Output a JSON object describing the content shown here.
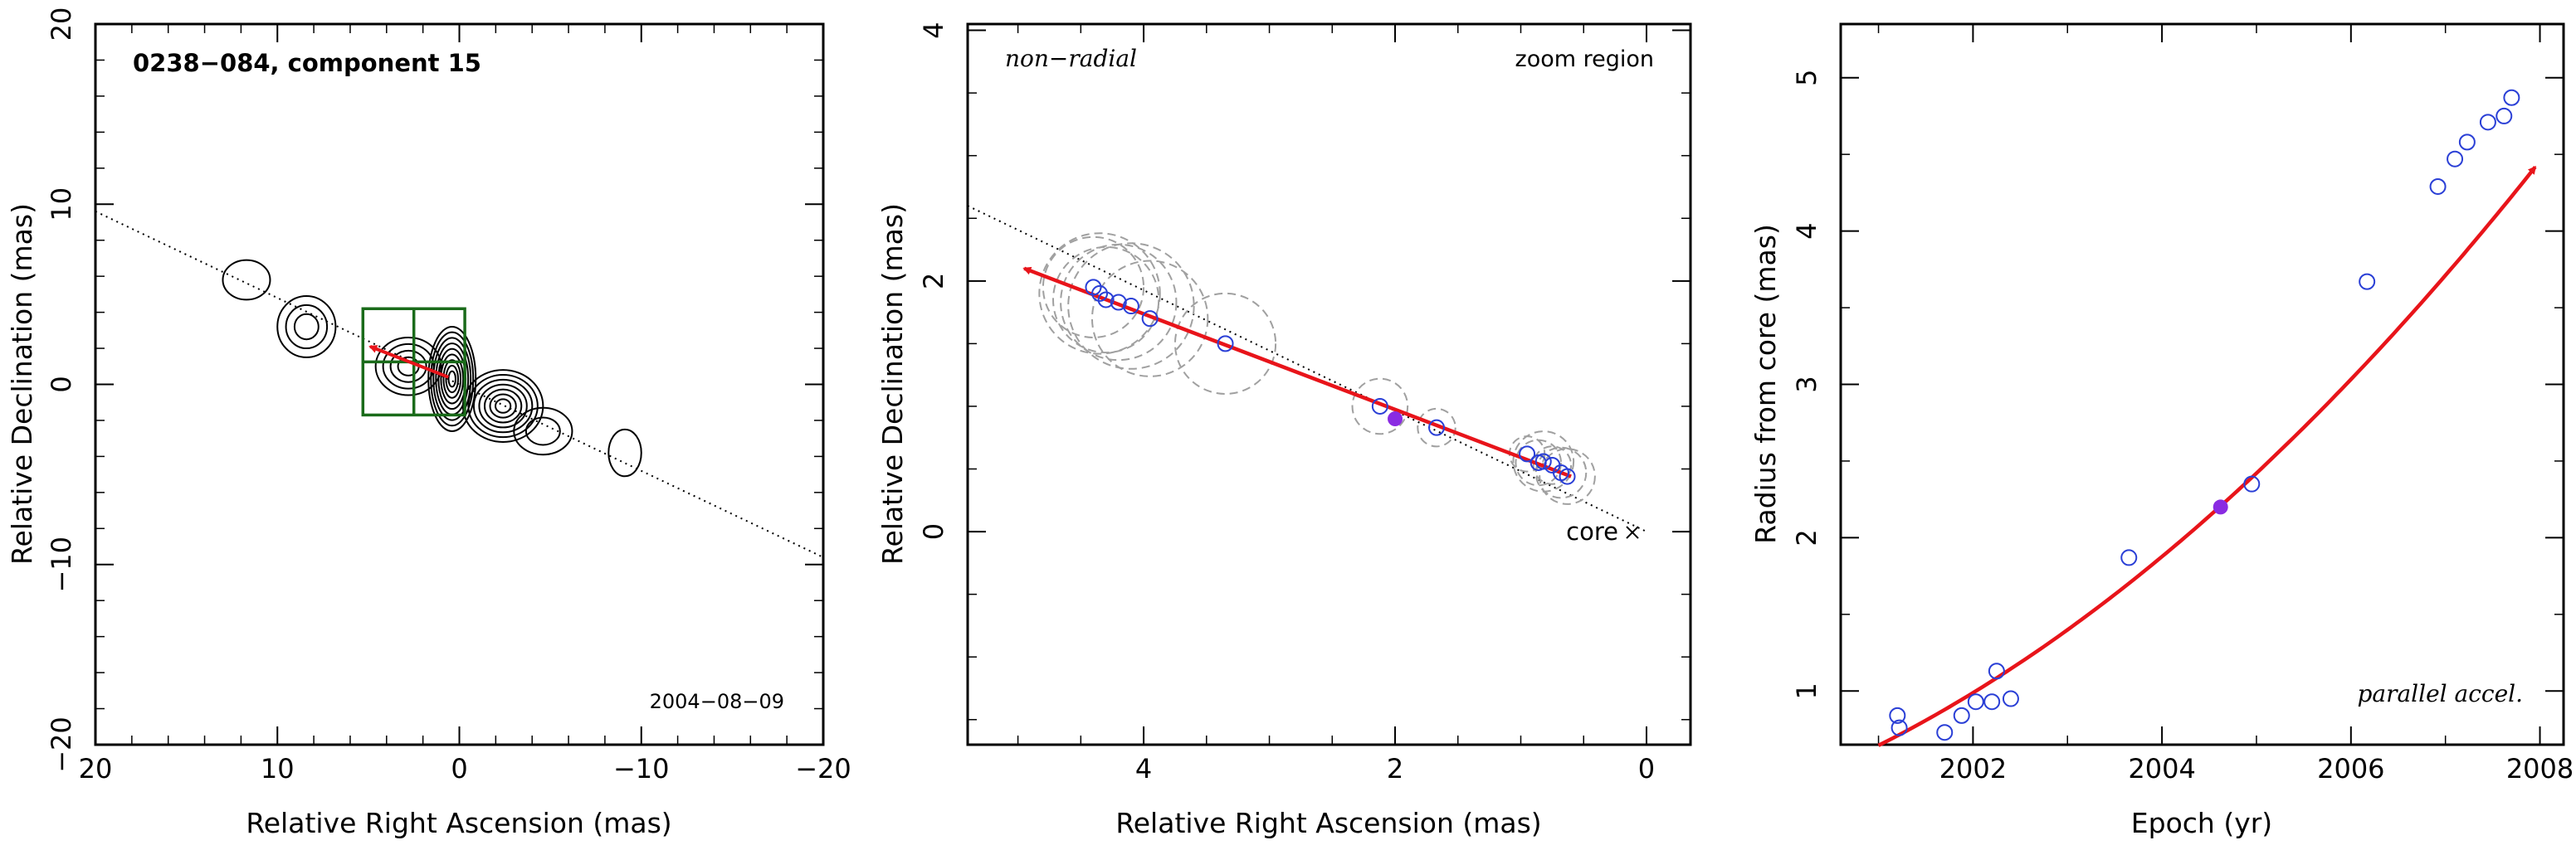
{
  "chart_data": [
    {
      "type": "contour",
      "title": "0238−084, component 15",
      "epoch_label": "2004−08−09",
      "xlabel": "Relative Right Ascension (mas)",
      "ylabel": "Relative Declination (mas)",
      "xlim": [
        20,
        -20
      ],
      "ylim": [
        -20,
        20
      ],
      "xticks": [
        20,
        10,
        0,
        -10,
        -20
      ],
      "yticks": [
        -20,
        -10,
        0,
        10,
        20
      ],
      "xtick_labels": [
        "20",
        "10",
        "0",
        "−10",
        "−20"
      ],
      "ytick_labels": [
        "−20",
        "−10",
        "0",
        "10",
        "20"
      ],
      "jet_axis_line": [
        [
          20,
          9.6
        ],
        [
          -20,
          -9.6
        ]
      ],
      "zoom_box": {
        "x": [
          5.3,
          -0.3
        ],
        "y": [
          -1.7,
          4.2
        ],
        "color": "#1a6b1a"
      },
      "track_arrow": {
        "from": [
          0.6,
          0.4
        ],
        "to": [
          4.9,
          2.1
        ],
        "color": "#e8141a"
      },
      "contour_features": [
        {
          "x": 0.4,
          "y": 0.3,
          "rx": 1.3,
          "ry": 2.9,
          "levels": 9
        },
        {
          "x": -2.4,
          "y": -1.2,
          "rx": 2.2,
          "ry": 2.0,
          "levels": 7
        },
        {
          "x": 2.8,
          "y": 1.0,
          "rx": 1.8,
          "ry": 1.6,
          "levels": 4
        },
        {
          "x": 8.4,
          "y": 3.2,
          "rx": 1.6,
          "ry": 1.7,
          "levels": 3
        },
        {
          "x": 11.7,
          "y": 5.8,
          "rx": 1.3,
          "ry": 1.1,
          "levels": 1
        },
        {
          "x": -4.6,
          "y": -2.6,
          "rx": 1.6,
          "ry": 1.3,
          "levels": 2
        },
        {
          "x": -9.1,
          "y": -3.8,
          "rx": 0.9,
          "ry": 1.3,
          "levels": 1
        }
      ]
    },
    {
      "type": "scatter",
      "label_left": "non−radial",
      "label_right": "zoom region",
      "core_label": "core",
      "xlabel": "Relative Right Ascension (mas)",
      "ylabel": "Relative Declination (mas)",
      "xlim": [
        5.4,
        -0.35
      ],
      "ylim": [
        -1.7,
        4.05
      ],
      "xticks": [
        4,
        2,
        0
      ],
      "yticks": [
        0,
        2,
        4
      ],
      "xtick_labels": [
        "4",
        "2",
        "0"
      ],
      "ytick_labels": [
        "0",
        "2",
        "4"
      ],
      "core": [
        0,
        0
      ],
      "jet_axis_line": [
        [
          5.4,
          2.6
        ],
        [
          0,
          0
        ]
      ],
      "fit_arrow": {
        "from": [
          0.6,
          0.44
        ],
        "to": [
          4.95,
          2.1
        ],
        "color": "#e8141a"
      },
      "points": [
        {
          "x": 0.63,
          "y": 0.44,
          "r": 0.22
        },
        {
          "x": 0.68,
          "y": 0.47,
          "r": 0.2
        },
        {
          "x": 0.75,
          "y": 0.53,
          "r": 0.15
        },
        {
          "x": 0.82,
          "y": 0.56,
          "r": 0.24
        },
        {
          "x": 0.86,
          "y": 0.55,
          "r": 0.18
        },
        {
          "x": 0.95,
          "y": 0.62,
          "r": 0.14
        },
        {
          "x": 1.67,
          "y": 0.83,
          "r": 0.15
        },
        {
          "x": 2.12,
          "y": 1.0,
          "r": 0.22
        },
        {
          "x": 3.35,
          "y": 1.5,
          "r": 0.4
        },
        {
          "x": 3.95,
          "y": 1.7,
          "r": 0.46
        },
        {
          "x": 4.1,
          "y": 1.8,
          "r": 0.5
        },
        {
          "x": 4.2,
          "y": 1.83,
          "r": 0.46
        },
        {
          "x": 4.3,
          "y": 1.85,
          "r": 0.42
        },
        {
          "x": 4.35,
          "y": 1.9,
          "r": 0.48
        },
        {
          "x": 4.4,
          "y": 1.95,
          "r": 0.4
        }
      ],
      "highlight_point": {
        "x": 2.0,
        "y": 0.9,
        "color": "#8a2be2"
      },
      "point_color": "#2a3fd6",
      "uncertainty_color": "#a0a0a0"
    },
    {
      "type": "scatter",
      "label": "parallel accel.",
      "xlabel": "Epoch (yr)",
      "ylabel": "Radius from core (mas)",
      "xlim": [
        2000.6,
        2008.25
      ],
      "ylim": [
        0.65,
        5.35
      ],
      "xticks": [
        2002,
        2004,
        2006,
        2008
      ],
      "yticks": [
        1,
        2,
        3,
        4,
        5
      ],
      "xtick_labels": [
        "2002",
        "2004",
        "2006",
        "2008"
      ],
      "ytick_labels": [
        "1",
        "2",
        "3",
        "4",
        "5"
      ],
      "points": [
        {
          "x": 2001.2,
          "y": 0.84
        },
        {
          "x": 2001.22,
          "y": 0.76
        },
        {
          "x": 2001.7,
          "y": 0.73
        },
        {
          "x": 2001.88,
          "y": 0.84
        },
        {
          "x": 2002.03,
          "y": 0.93
        },
        {
          "x": 2002.2,
          "y": 0.93
        },
        {
          "x": 2002.25,
          "y": 1.13
        },
        {
          "x": 2002.4,
          "y": 0.95
        },
        {
          "x": 2003.65,
          "y": 1.87
        },
        {
          "x": 2004.95,
          "y": 2.35
        },
        {
          "x": 2006.17,
          "y": 3.67
        },
        {
          "x": 2006.92,
          "y": 4.29
        },
        {
          "x": 2007.1,
          "y": 4.47
        },
        {
          "x": 2007.23,
          "y": 4.58
        },
        {
          "x": 2007.45,
          "y": 4.71
        },
        {
          "x": 2007.62,
          "y": 4.75
        },
        {
          "x": 2007.7,
          "y": 4.87
        }
      ],
      "highlight_point": {
        "x": 2004.62,
        "y": 2.2,
        "color": "#8a2be2"
      },
      "fit_curve": {
        "t0": 2001.0,
        "coeffs": [
          0.645,
          0.31,
          0.0335
        ],
        "x_end": 2007.95,
        "color": "#e8141a"
      },
      "point_color": "#2a3fd6"
    }
  ]
}
